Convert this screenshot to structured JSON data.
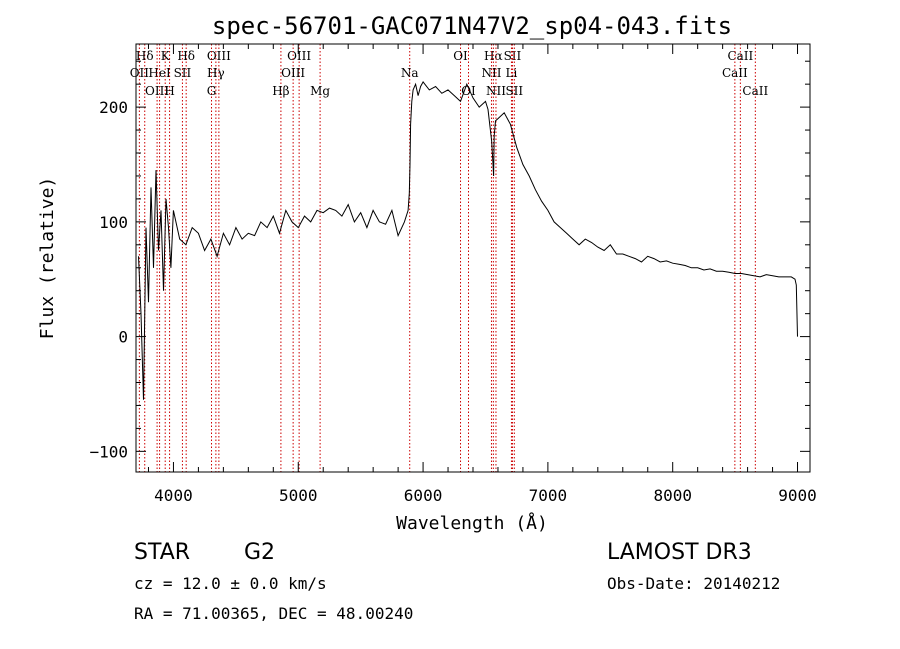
{
  "chart_data": {
    "type": "line",
    "title": "spec-56701-GAC071N47V2_sp04-043.fits",
    "xlabel": "Wavelength (Å)",
    "ylabel": "Flux (relative)",
    "xlim": [
      3700,
      9100
    ],
    "ylim": [
      -118,
      255
    ],
    "xticks": [
      4000,
      5000,
      6000,
      7000,
      8000,
      9000
    ],
    "xtick_labels": [
      "4000",
      "5000",
      "6000",
      "7000",
      "8000",
      "9000"
    ],
    "yticks": [
      -100,
      0,
      100,
      200
    ],
    "ytick_labels": [
      "−100",
      "0",
      "100",
      "200"
    ],
    "series": [
      {
        "name": "flux",
        "x": [
          3720,
          3740,
          3760,
          3780,
          3800,
          3820,
          3840,
          3860,
          3880,
          3900,
          3920,
          3940,
          3960,
          3980,
          4000,
          4050,
          4100,
          4150,
          4200,
          4250,
          4300,
          4350,
          4400,
          4450,
          4500,
          4550,
          4600,
          4650,
          4700,
          4750,
          4800,
          4850,
          4900,
          4950,
          5000,
          5050,
          5100,
          5150,
          5200,
          5250,
          5300,
          5350,
          5400,
          5450,
          5500,
          5550,
          5600,
          5650,
          5700,
          5750,
          5800,
          5850,
          5880,
          5890,
          5895,
          5900,
          5910,
          5920,
          5940,
          5960,
          5980,
          6000,
          6050,
          6100,
          6150,
          6200,
          6250,
          6300,
          6350,
          6400,
          6450,
          6500,
          6520,
          6550,
          6560,
          6565,
          6570,
          6580,
          6600,
          6620,
          6650,
          6700,
          6750,
          6800,
          6850,
          6900,
          6950,
          7000,
          7050,
          7100,
          7150,
          7200,
          7250,
          7300,
          7350,
          7400,
          7450,
          7500,
          7550,
          7600,
          7650,
          7700,
          7750,
          7800,
          7850,
          7900,
          7950,
          8000,
          8050,
          8100,
          8150,
          8200,
          8250,
          8300,
          8350,
          8400,
          8450,
          8500,
          8550,
          8600,
          8650,
          8700,
          8750,
          8800,
          8850,
          8900,
          8950,
          8980,
          8990,
          9000
        ],
        "values": [
          70,
          20,
          -55,
          95,
          30,
          130,
          60,
          145,
          75,
          110,
          40,
          120,
          95,
          60,
          110,
          85,
          80,
          95,
          90,
          75,
          85,
          70,
          90,
          80,
          95,
          85,
          90,
          88,
          100,
          95,
          105,
          90,
          110,
          100,
          95,
          105,
          100,
          110,
          108,
          112,
          110,
          105,
          115,
          100,
          108,
          95,
          110,
          100,
          98,
          110,
          88,
          100,
          110,
          125,
          150,
          185,
          205,
          215,
          220,
          210,
          218,
          222,
          215,
          218,
          212,
          215,
          210,
          205,
          220,
          208,
          200,
          205,
          198,
          170,
          150,
          140,
          175,
          188,
          190,
          192,
          195,
          185,
          165,
          150,
          140,
          128,
          118,
          110,
          100,
          95,
          90,
          85,
          80,
          85,
          82,
          78,
          75,
          80,
          72,
          72,
          70,
          68,
          65,
          70,
          68,
          65,
          66,
          64,
          63,
          62,
          60,
          60,
          58,
          59,
          57,
          57,
          56,
          55,
          55,
          54,
          53,
          52,
          54,
          53,
          52,
          52,
          52,
          50,
          45,
          0
        ]
      }
    ],
    "line_markers": [
      {
        "label": "Hδ",
        "wavelength": 3770,
        "row": 0
      },
      {
        "label": "K",
        "wavelength": 3934,
        "row": 0
      },
      {
        "label": "Hδ",
        "wavelength": 4102,
        "row": 0
      },
      {
        "label": "OIII",
        "wavelength": 4364,
        "row": 0
      },
      {
        "label": "OIII",
        "wavelength": 5007,
        "row": 0
      },
      {
        "label": "OI",
        "wavelength": 6300,
        "row": 0
      },
      {
        "label": "Hα",
        "wavelength": 6563,
        "row": 0
      },
      {
        "label": "SII",
        "wavelength": 6716,
        "row": 0
      },
      {
        "label": "CaII",
        "wavelength": 8542,
        "row": 0
      },
      {
        "label": "OII",
        "wavelength": 3727,
        "row": 1
      },
      {
        "label": "HeI",
        "wavelength": 3889,
        "row": 1
      },
      {
        "label": "SII",
        "wavelength": 4072,
        "row": 1
      },
      {
        "label": "Hγ",
        "wavelength": 4340,
        "row": 1
      },
      {
        "label": "OIII",
        "wavelength": 4959,
        "row": 1
      },
      {
        "label": "Na",
        "wavelength": 5893,
        "row": 1
      },
      {
        "label": "NII",
        "wavelength": 6548,
        "row": 1
      },
      {
        "label": "Li",
        "wavelength": 6708,
        "row": 1
      },
      {
        "label": "CaII",
        "wavelength": 8498,
        "row": 1
      },
      {
        "label": "OIII",
        "wavelength": 3869,
        "row": 2
      },
      {
        "label": "H",
        "wavelength": 3969,
        "row": 2
      },
      {
        "label": "G",
        "wavelength": 4305,
        "row": 2
      },
      {
        "label": "Hβ",
        "wavelength": 4861,
        "row": 2
      },
      {
        "label": "Mg",
        "wavelength": 5175,
        "row": 2
      },
      {
        "label": "OI",
        "wavelength": 6364,
        "row": 2
      },
      {
        "label": "NII",
        "wavelength": 6584,
        "row": 2
      },
      {
        "label": "SII",
        "wavelength": 6731,
        "row": 2
      },
      {
        "label": "CaII",
        "wavelength": 8662,
        "row": 2
      }
    ],
    "marker_color": "#cc0000",
    "line_color": "#000000"
  },
  "info": {
    "object_type": "STAR",
    "subclass": "G2",
    "survey": "LAMOST DR3",
    "redshift": "cz = 12.0 ± 0.0 km/s",
    "obs_date": "Obs-Date: 20140212",
    "coords": "RA =  71.00365, DEC =  48.00240"
  }
}
